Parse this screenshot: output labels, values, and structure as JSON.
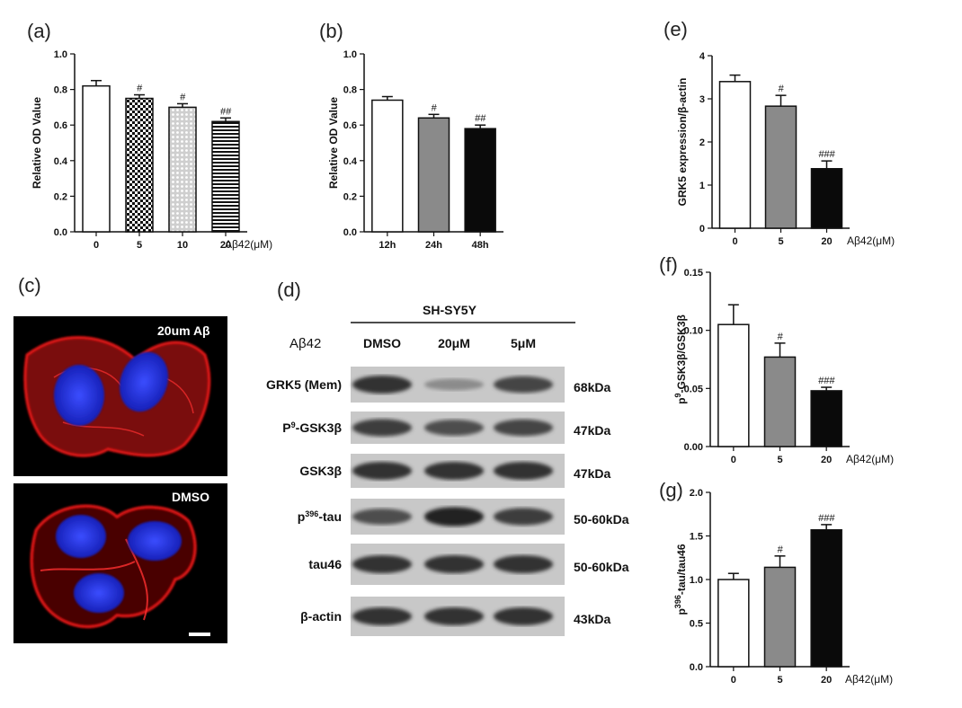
{
  "panels": {
    "a": {
      "letter": "(a)"
    },
    "b": {
      "letter": "(b)"
    },
    "c": {
      "letter": "(c)",
      "top_label": "20um Aβ",
      "bottom_label": "DMSO"
    },
    "d": {
      "letter": "(d)"
    },
    "e": {
      "letter": "(e)"
    },
    "f": {
      "letter": "(f)"
    },
    "g": {
      "letter": "(g)"
    }
  },
  "western_blot": {
    "cell_line": "SH-SY5Y",
    "treatment_label": "Aβ42",
    "lanes": [
      "DMSO",
      "20μM",
      "5μM"
    ],
    "rows": [
      {
        "protein": "GRK5 (Mem)",
        "size": "68kDa",
        "intensity": [
          0.85,
          0.35,
          0.75
        ]
      },
      {
        "protein": "P9-GSK3β",
        "size": "47kDa",
        "intensity": [
          0.8,
          0.7,
          0.75
        ]
      },
      {
        "protein": "GSK3β",
        "size": "47kDa",
        "intensity": [
          0.85,
          0.85,
          0.85
        ]
      },
      {
        "protein": "p396-tau",
        "size": "50-60kDa",
        "intensity": [
          0.7,
          0.95,
          0.8
        ]
      },
      {
        "protein": "tau46",
        "size": "50-60kDa",
        "intensity": [
          0.85,
          0.85,
          0.85
        ]
      },
      {
        "protein": "β-actin",
        "size": "43kDa",
        "intensity": [
          0.85,
          0.85,
          0.85
        ]
      }
    ]
  },
  "chart_data": [
    {
      "id": "a",
      "type": "bar",
      "categories": [
        "0",
        "5",
        "10",
        "20"
      ],
      "values": [
        0.82,
        0.75,
        0.7,
        0.62
      ],
      "errors": [
        0.03,
        0.02,
        0.02,
        0.02
      ],
      "significance": [
        "",
        "#",
        "#",
        "##"
      ],
      "patterns": [
        "white",
        "checker",
        "dots",
        "hlines"
      ],
      "ylabel": "Relative OD Value",
      "x_unit_label": "Aβ42(μM)",
      "ylim": [
        0.0,
        1.0
      ],
      "yticks": [
        "0.0",
        "0.2",
        "0.4",
        "0.6",
        "0.8",
        "1.0"
      ]
    },
    {
      "id": "b",
      "type": "bar",
      "categories": [
        "12h",
        "24h",
        "48h"
      ],
      "values": [
        0.74,
        0.64,
        0.58
      ],
      "errors": [
        0.02,
        0.02,
        0.02
      ],
      "significance": [
        "",
        "#",
        "##"
      ],
      "patterns": [
        "white",
        "gray",
        "black"
      ],
      "ylabel": "Relative OD Value",
      "x_unit_label": "",
      "ylim": [
        0.0,
        1.0
      ],
      "yticks": [
        "0.0",
        "0.2",
        "0.4",
        "0.6",
        "0.8",
        "1.0"
      ]
    },
    {
      "id": "e",
      "type": "bar",
      "categories": [
        "0",
        "5",
        "20"
      ],
      "values": [
        3.4,
        2.83,
        1.38
      ],
      "errors": [
        0.15,
        0.25,
        0.18
      ],
      "significance": [
        "",
        "#",
        "###"
      ],
      "patterns": [
        "white",
        "gray",
        "black"
      ],
      "ylabel": "GRK5 expression/β-actin",
      "x_unit_label": "Aβ42(μM)",
      "ylim": [
        0,
        4
      ],
      "yticks": [
        "0",
        "1",
        "2",
        "3",
        "4"
      ]
    },
    {
      "id": "f",
      "type": "bar",
      "categories": [
        "0",
        "5",
        "20"
      ],
      "values": [
        0.105,
        0.077,
        0.048
      ],
      "errors": [
        0.017,
        0.012,
        0.003
      ],
      "significance": [
        "",
        "#",
        "###"
      ],
      "patterns": [
        "white",
        "gray",
        "black"
      ],
      "ylabel": "p9-GSK3β/GSK3β",
      "x_unit_label": "Aβ42(μM)",
      "ylim": [
        0.0,
        0.15
      ],
      "yticks": [
        "0.00",
        "0.05",
        "0.10",
        "0.15"
      ]
    },
    {
      "id": "g",
      "type": "bar",
      "categories": [
        "0",
        "5",
        "20"
      ],
      "values": [
        1.0,
        1.14,
        1.57
      ],
      "errors": [
        0.07,
        0.13,
        0.06
      ],
      "significance": [
        "",
        "#",
        "###"
      ],
      "patterns": [
        "white",
        "gray",
        "black"
      ],
      "ylabel": "p396-tau/tau46",
      "x_unit_label": "Aβ42(μM)",
      "ylim": [
        0.0,
        2.0
      ],
      "yticks": [
        "0.0",
        "0.5",
        "1.0",
        "1.5",
        "2.0"
      ]
    }
  ],
  "colors": {
    "gray_bar": "#8a8a8a",
    "black_bar": "#0a0a0a",
    "nucleus": "#2a3cff",
    "actin": "#e01818"
  }
}
